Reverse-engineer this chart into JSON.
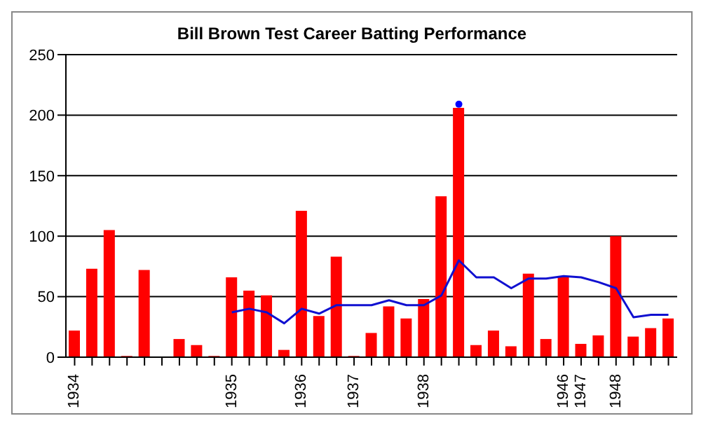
{
  "chart_data": {
    "type": "bar",
    "title": "Bill Brown Test Career Batting Performance",
    "categories": [
      "1934",
      null,
      null,
      null,
      null,
      null,
      null,
      null,
      null,
      "1935",
      null,
      null,
      null,
      "1936",
      null,
      null,
      "1937",
      null,
      null,
      null,
      "1938",
      null,
      null,
      null,
      null,
      null,
      null,
      null,
      "1946",
      "1947",
      null,
      "1948",
      null,
      null,
      null
    ],
    "series": [
      {
        "color": "#ff0000",
        "values": [
          22,
          73,
          105,
          1,
          72,
          0,
          15,
          10,
          1,
          66,
          55,
          51,
          6,
          121,
          34,
          83,
          1,
          20,
          42,
          32,
          48,
          133,
          206,
          10,
          22,
          9,
          69,
          15,
          67,
          11,
          18,
          100,
          17,
          24,
          32
        ]
      },
      {
        "type": "line",
        "color": "#1010d0",
        "marker": "none",
        "values": [
          null,
          null,
          null,
          null,
          null,
          null,
          null,
          null,
          null,
          37,
          40,
          37,
          28,
          40,
          36,
          43,
          43,
          43,
          47,
          43,
          43,
          51,
          80,
          66,
          66,
          57,
          65,
          65,
          67,
          66,
          62,
          57,
          33,
          35,
          35
        ]
      },
      {
        "type": "scatter",
        "color": "#0000ff",
        "marker": "circle",
        "values": [
          null,
          null,
          null,
          null,
          null,
          null,
          null,
          null,
          null,
          null,
          null,
          null,
          null,
          null,
          null,
          null,
          null,
          null,
          null,
          null,
          null,
          null,
          209,
          null,
          null,
          null,
          null,
          null,
          null,
          null,
          null,
          null,
          null,
          null,
          null
        ]
      }
    ],
    "ylim": [
      0,
      250
    ],
    "yticks": [
      0,
      50,
      100,
      150,
      200,
      250
    ],
    "grid": "y"
  }
}
